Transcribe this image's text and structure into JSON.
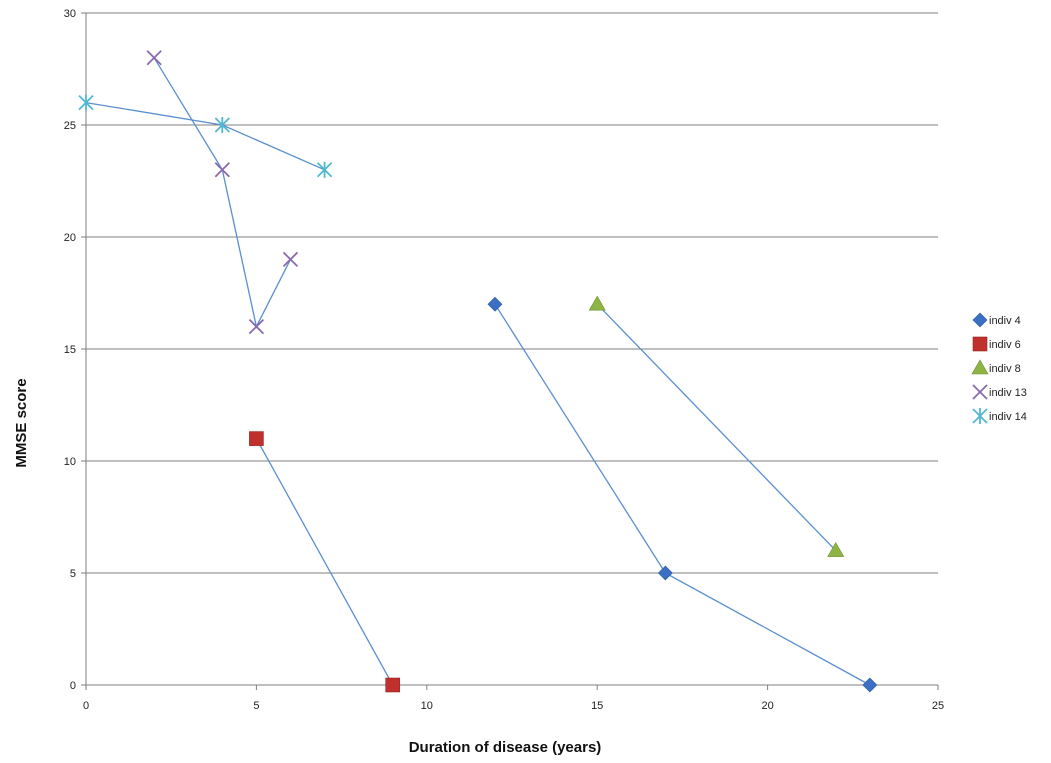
{
  "chart_data": {
    "type": "scatter",
    "title": "",
    "xlabel": "Duration of disease (years)",
    "ylabel": "MMSE score",
    "xlim": [
      0,
      25
    ],
    "ylim": [
      0,
      30
    ],
    "xticks": [
      0,
      5,
      10,
      15,
      20,
      25
    ],
    "yticks": [
      0,
      5,
      10,
      15,
      20,
      25,
      30
    ],
    "grid": "horizontal",
    "legend_position": "right",
    "line_color": "#5a8fd0",
    "series": [
      {
        "name": "indiv 4",
        "marker": "diamond",
        "color": "#3a6fc4",
        "points": [
          [
            12,
            17
          ],
          [
            17,
            5
          ],
          [
            23,
            0
          ]
        ]
      },
      {
        "name": "indiv 6",
        "marker": "square",
        "color": "#c0302d",
        "points": [
          [
            5,
            11
          ],
          [
            9,
            0
          ]
        ]
      },
      {
        "name": "indiv 8",
        "marker": "triangle",
        "color": "#8db444",
        "points": [
          [
            15,
            17
          ],
          [
            22,
            6
          ]
        ]
      },
      {
        "name": "indiv 13",
        "marker": "x",
        "color": "#8a6aae",
        "points": [
          [
            2,
            28
          ],
          [
            4,
            23
          ],
          [
            5,
            16
          ],
          [
            6,
            19
          ]
        ]
      },
      {
        "name": "indiv 14",
        "marker": "star",
        "color": "#4fb8cf",
        "points": [
          [
            0,
            26
          ],
          [
            4,
            25
          ],
          [
            7,
            23
          ]
        ]
      }
    ]
  }
}
